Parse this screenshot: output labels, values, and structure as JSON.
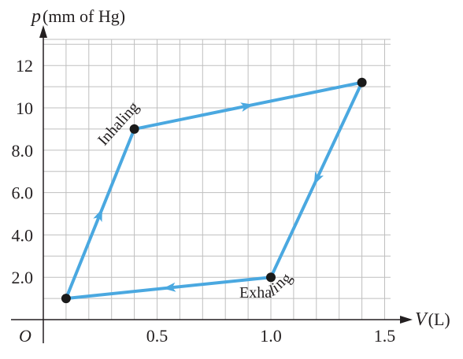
{
  "chart_data": {
    "type": "line",
    "xlabel_symbol": "V",
    "xlabel_unit": "(L)",
    "ylabel_symbol": "p",
    "ylabel_unit": "(mm of Hg)",
    "origin_label": "O",
    "xlim": [
      0,
      1.6
    ],
    "ylim": [
      0,
      13
    ],
    "grid": true,
    "x_ticks": [
      {
        "value": 0.5,
        "label": "0.5"
      },
      {
        "value": 1.0,
        "label": "1.0"
      },
      {
        "value": 1.5,
        "label": "1.5"
      }
    ],
    "y_ticks": [
      {
        "value": 2,
        "label": "2.0"
      },
      {
        "value": 4,
        "label": "4.0"
      },
      {
        "value": 6,
        "label": "6.0"
      },
      {
        "value": 8,
        "label": "8.0"
      },
      {
        "value": 10,
        "label": "10"
      },
      {
        "value": 12,
        "label": "12"
      }
    ],
    "points": [
      {
        "x": 0.1,
        "y": 1.0
      },
      {
        "x": 0.4,
        "y": 9.0
      },
      {
        "x": 1.4,
        "y": 11.2
      },
      {
        "x": 1.0,
        "y": 2.0
      }
    ],
    "annotations": [
      {
        "text": "Inhaling",
        "x": 0.4,
        "y": 9.0
      },
      {
        "text": "Exhaling",
        "x": 1.0,
        "y": 2.0
      }
    ],
    "line_color": "#4aa8e0",
    "point_color": "#1a1a1a",
    "grid_color": "#bfbfbf"
  }
}
